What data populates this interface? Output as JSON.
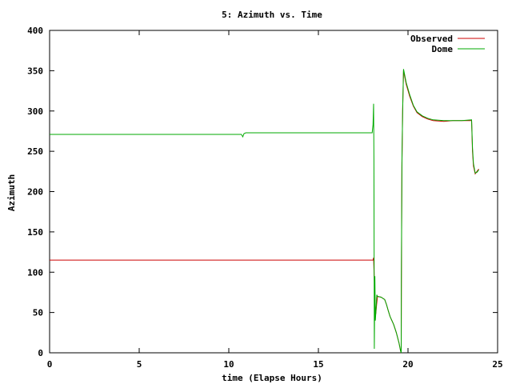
{
  "chart_data": {
    "type": "line",
    "title": "5: Azimuth vs. Time",
    "xlabel": "time (Elapse Hours)",
    "ylabel": "Azimuth",
    "xlim": [
      0,
      25
    ],
    "ylim": [
      0,
      400
    ],
    "xticks": [
      "0",
      "5",
      "10",
      "15",
      "20",
      "25"
    ],
    "yticks": [
      "0",
      "50",
      "100",
      "150",
      "200",
      "250",
      "300",
      "350",
      "400"
    ],
    "legend_position": "top-right",
    "grid": false,
    "series": [
      {
        "name": "Observed",
        "color": "#cc0000",
        "points": [
          [
            0,
            115
          ],
          [
            18.05,
            115
          ],
          [
            18.08,
            118
          ],
          [
            18.1,
            105
          ],
          [
            18.13,
            85
          ],
          [
            18.16,
            62
          ],
          [
            18.2,
            48
          ],
          [
            18.25,
            60
          ],
          [
            18.3,
            70
          ],
          [
            18.5,
            69
          ],
          [
            18.7,
            66
          ],
          [
            18.8,
            60
          ],
          [
            18.9,
            52
          ],
          [
            19.0,
            45
          ],
          [
            19.2,
            35
          ],
          [
            19.35,
            25
          ],
          [
            19.5,
            12
          ],
          [
            19.58,
            3
          ],
          [
            19.62,
            0
          ],
          [
            19.63,
            80
          ],
          [
            19.66,
            230
          ],
          [
            19.7,
            300
          ],
          [
            19.75,
            350
          ],
          [
            19.9,
            333
          ],
          [
            20.1,
            318
          ],
          [
            20.3,
            306
          ],
          [
            20.5,
            298
          ],
          [
            20.8,
            293
          ],
          [
            21.1,
            290
          ],
          [
            21.4,
            288
          ],
          [
            22.0,
            287
          ],
          [
            22.5,
            288
          ],
          [
            23.0,
            288
          ],
          [
            23.55,
            288
          ],
          [
            23.6,
            250
          ],
          [
            23.65,
            232
          ],
          [
            23.75,
            222
          ],
          [
            23.85,
            225
          ],
          [
            23.95,
            228
          ]
        ]
      },
      {
        "name": "Dome",
        "color": "#00aa00",
        "points": [
          [
            0,
            271
          ],
          [
            10.7,
            271
          ],
          [
            10.78,
            268
          ],
          [
            10.85,
            272
          ],
          [
            10.95,
            273
          ],
          [
            18.0,
            273
          ],
          [
            18.05,
            283
          ],
          [
            18.08,
            309
          ],
          [
            18.1,
            240
          ],
          [
            18.12,
            5
          ],
          [
            18.15,
            95
          ],
          [
            18.18,
            40
          ],
          [
            18.22,
            55
          ],
          [
            18.26,
            72
          ],
          [
            18.3,
            70
          ],
          [
            18.5,
            69
          ],
          [
            18.7,
            66
          ],
          [
            18.8,
            60
          ],
          [
            18.9,
            52
          ],
          [
            19.0,
            45
          ],
          [
            19.2,
            35
          ],
          [
            19.35,
            25
          ],
          [
            19.5,
            12
          ],
          [
            19.58,
            3
          ],
          [
            19.62,
            0
          ],
          [
            19.63,
            90
          ],
          [
            19.66,
            235
          ],
          [
            19.7,
            300
          ],
          [
            19.75,
            352
          ],
          [
            19.9,
            335
          ],
          [
            20.1,
            320
          ],
          [
            20.3,
            307
          ],
          [
            20.5,
            299
          ],
          [
            20.8,
            294
          ],
          [
            21.1,
            291
          ],
          [
            21.4,
            289
          ],
          [
            22.0,
            288
          ],
          [
            22.5,
            288
          ],
          [
            23.0,
            288
          ],
          [
            23.55,
            289
          ],
          [
            23.6,
            255
          ],
          [
            23.65,
            235
          ],
          [
            23.75,
            223
          ],
          [
            23.85,
            224
          ],
          [
            23.95,
            227
          ]
        ]
      }
    ]
  }
}
